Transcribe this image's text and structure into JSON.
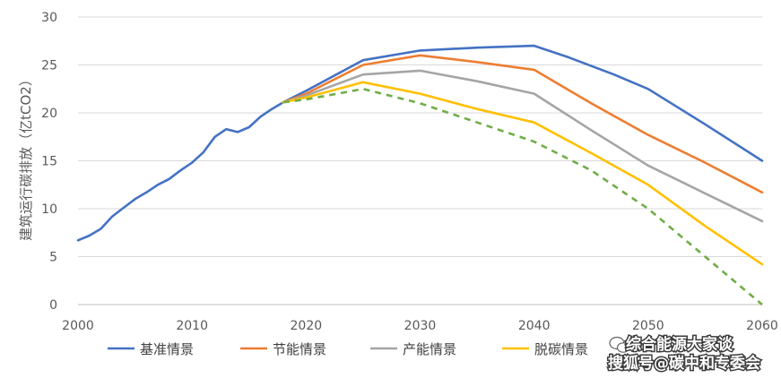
{
  "chart_data": {
    "type": "line",
    "title": "",
    "xlabel": "",
    "ylabel": "建筑运行碳排放（亿tCO2）",
    "xlim": [
      2000,
      2060
    ],
    "ylim": [
      0,
      30
    ],
    "x_ticks": [
      "2000",
      "2010",
      "2020",
      "2030",
      "2040",
      "2050",
      "2060"
    ],
    "y_ticks": [
      "0",
      "5",
      "10",
      "15",
      "20",
      "25",
      "30"
    ],
    "grid": "horizontal",
    "legend_position": "bottom",
    "series": [
      {
        "name": "基准情景",
        "color": "#4472C4",
        "style": "solid",
        "points": [
          [
            2000,
            6.7
          ],
          [
            2001,
            7.2
          ],
          [
            2002,
            7.9
          ],
          [
            2003,
            9.2
          ],
          [
            2004,
            10.1
          ],
          [
            2005,
            11.0
          ],
          [
            2006,
            11.7
          ],
          [
            2007,
            12.5
          ],
          [
            2008,
            13.1
          ],
          [
            2009,
            14.0
          ],
          [
            2010,
            14.8
          ],
          [
            2011,
            15.9
          ],
          [
            2012,
            17.5
          ],
          [
            2013,
            18.3
          ],
          [
            2014,
            18.0
          ],
          [
            2015,
            18.5
          ],
          [
            2016,
            19.6
          ],
          [
            2017,
            20.4
          ],
          [
            2018,
            21.1
          ],
          [
            2020,
            22.3
          ],
          [
            2025,
            25.5
          ],
          [
            2030,
            26.5
          ],
          [
            2035,
            26.8
          ],
          [
            2040,
            27.0
          ],
          [
            2043,
            25.8
          ],
          [
            2047,
            24.0
          ],
          [
            2050,
            22.5
          ],
          [
            2055,
            18.8
          ],
          [
            2060,
            15.0
          ]
        ]
      },
      {
        "name": "节能情景",
        "color": "#ED7D31",
        "style": "solid",
        "points": [
          [
            2018,
            21.1
          ],
          [
            2020,
            22.0
          ],
          [
            2025,
            25.0
          ],
          [
            2030,
            26.0
          ],
          [
            2035,
            25.3
          ],
          [
            2040,
            24.5
          ],
          [
            2045,
            21.0
          ],
          [
            2050,
            17.7
          ],
          [
            2055,
            14.8
          ],
          [
            2060,
            11.7
          ]
        ]
      },
      {
        "name": "产能情景",
        "color": "#A5A5A5",
        "style": "solid",
        "points": [
          [
            2018,
            21.1
          ],
          [
            2020,
            21.8
          ],
          [
            2025,
            24.0
          ],
          [
            2030,
            24.4
          ],
          [
            2035,
            23.3
          ],
          [
            2040,
            22.0
          ],
          [
            2045,
            18.2
          ],
          [
            2050,
            14.5
          ],
          [
            2055,
            11.6
          ],
          [
            2060,
            8.7
          ]
        ]
      },
      {
        "name": "脱碳情景",
        "color": "#FFC000",
        "style": "solid",
        "points": [
          [
            2018,
            21.1
          ],
          [
            2020,
            21.6
          ],
          [
            2025,
            23.2
          ],
          [
            2030,
            22.0
          ],
          [
            2035,
            20.4
          ],
          [
            2040,
            19.0
          ],
          [
            2045,
            15.8
          ],
          [
            2050,
            12.5
          ],
          [
            2055,
            8.2
          ],
          [
            2060,
            4.2
          ]
        ]
      },
      {
        "name": "",
        "color": "#70AD47",
        "style": "dashed",
        "points": [
          [
            2018,
            21.1
          ],
          [
            2020,
            21.4
          ],
          [
            2025,
            22.5
          ],
          [
            2030,
            21.0
          ],
          [
            2035,
            19.0
          ],
          [
            2040,
            17.0
          ],
          [
            2045,
            14.0
          ],
          [
            2050,
            10.0
          ],
          [
            2055,
            5.0
          ],
          [
            2060,
            0.0
          ]
        ]
      }
    ]
  },
  "watermark": {
    "line1": "综合能源大家谈",
    "line2": "搜狐号@碳中和专委会",
    "icon": "wechat-icon"
  }
}
